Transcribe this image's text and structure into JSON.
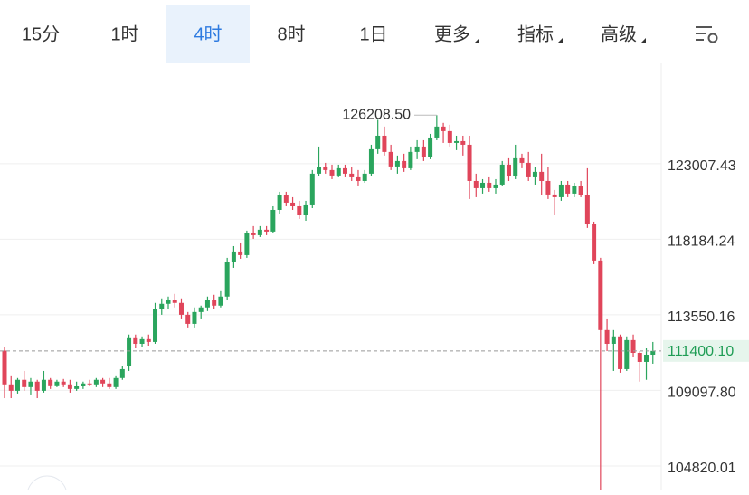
{
  "tabs": [
    "15分",
    "1时",
    "4时",
    "8时",
    "1日",
    "更多",
    "指标",
    "高级"
  ],
  "selected_tab": 2,
  "chart_data": {
    "type": "candlestick",
    "log_scale": true,
    "grid": true,
    "up_color": "#2aa55d",
    "down_color": "#e0455a",
    "ylim": [
      103470,
      129720
    ],
    "yticks": [
      123007.43,
      118184.24,
      113550.16,
      {
        "value": 109097.8,
        "label": "109097.80"
      },
      104820.01
    ],
    "high_label": {
      "value": 126208.5,
      "label": "126208.50"
    },
    "last_price": {
      "value": 111400.1,
      "label": "111400.10"
    },
    "ohlc": [
      [
        111420,
        111659,
        108650,
        109445
      ],
      [
        109445,
        109968,
        108650,
        109074
      ],
      [
        109074,
        109813,
        108915,
        109710
      ],
      [
        109710,
        110226,
        109074,
        109286
      ],
      [
        109286,
        109813,
        108862,
        109604
      ],
      [
        109604,
        109710,
        108650,
        109074
      ],
      [
        109074,
        110226,
        108968,
        109710
      ],
      [
        109710,
        109813,
        109180,
        109392
      ],
      [
        109392,
        109710,
        109286,
        109604
      ],
      [
        109604,
        109760,
        109286,
        109445
      ],
      [
        109445,
        109710,
        108968,
        109180
      ],
      [
        109180,
        109604,
        109074,
        109339
      ],
      [
        109339,
        109604,
        109180,
        109498
      ],
      [
        109498,
        109710,
        109339,
        109445
      ],
      [
        109445,
        109813,
        109286,
        109710
      ],
      [
        109710,
        109813,
        109286,
        109498
      ],
      [
        109498,
        109813,
        109180,
        109286
      ],
      [
        109286,
        109968,
        109180,
        109813
      ],
      [
        109813,
        110490,
        109710,
        110332
      ],
      [
        110490,
        112370,
        110226,
        112205
      ],
      [
        112205,
        112370,
        111552,
        111820
      ],
      [
        111820,
        112260,
        111606,
        112095
      ],
      [
        112095,
        112370,
        111713,
        111930
      ],
      [
        111930,
        114268,
        111820,
        113884
      ],
      [
        113884,
        114542,
        113551,
        114213
      ],
      [
        114213,
        114652,
        113884,
        114432
      ],
      [
        114432,
        114816,
        113995,
        114268
      ],
      [
        114268,
        114542,
        113332,
        113551
      ],
      [
        113551,
        113718,
        112794,
        113008
      ],
      [
        113008,
        113995,
        112794,
        113718
      ],
      [
        113718,
        114104,
        113332,
        113995
      ],
      [
        113995,
        114652,
        113773,
        114432
      ],
      [
        114432,
        114761,
        113884,
        114104
      ],
      [
        114104,
        114980,
        113995,
        114652
      ],
      [
        114652,
        117030,
        114432,
        116750
      ],
      [
        116750,
        117758,
        116414,
        117422
      ],
      [
        117422,
        117984,
        116974,
        117198
      ],
      [
        117198,
        118725,
        117030,
        118554
      ],
      [
        118554,
        119010,
        118212,
        118440
      ],
      [
        118440,
        119010,
        118326,
        118782
      ],
      [
        118782,
        119010,
        118440,
        118668
      ],
      [
        118668,
        120266,
        118554,
        120035
      ],
      [
        120035,
        121194,
        119805,
        120962
      ],
      [
        120962,
        121194,
        120266,
        120498
      ],
      [
        120498,
        120846,
        120035,
        120266
      ],
      [
        120266,
        120614,
        119462,
        119690
      ],
      [
        119690,
        120614,
        119348,
        120382
      ],
      [
        120382,
        122597,
        120150,
        122362
      ],
      [
        122362,
        124132,
        122185,
        122773
      ],
      [
        122773,
        123066,
        122362,
        122597
      ],
      [
        122597,
        122948,
        122008,
        122244
      ],
      [
        122244,
        122948,
        122126,
        122714
      ],
      [
        122714,
        122948,
        122126,
        122362
      ],
      [
        122362,
        122773,
        121890,
        122126
      ],
      [
        122126,
        122597,
        121600,
        121890
      ],
      [
        121890,
        122597,
        121774,
        122362
      ],
      [
        122362,
        124250,
        122185,
        123955
      ],
      [
        123955,
        125900,
        123660,
        124845
      ],
      [
        124845,
        125450,
        123541,
        123778
      ],
      [
        123778,
        124250,
        122597,
        122831
      ],
      [
        122831,
        123541,
        122362,
        123185
      ],
      [
        123185,
        123660,
        122480,
        122714
      ],
      [
        122714,
        124132,
        122597,
        123778
      ],
      [
        123778,
        124548,
        123304,
        124132
      ],
      [
        124132,
        124548,
        123185,
        123424
      ],
      [
        123424,
        124966,
        123304,
        124726
      ],
      [
        124726,
        126208.5,
        124548,
        125450
      ],
      [
        125450,
        125694,
        124369,
        125148
      ],
      [
        125148,
        125572,
        124132,
        124369
      ],
      [
        124369,
        124845,
        123896,
        124488
      ],
      [
        124488,
        124845,
        123541,
        124250
      ],
      [
        124250,
        124845,
        120730,
        121890
      ],
      [
        121890,
        122362,
        120846,
        121426
      ],
      [
        121426,
        122008,
        121078,
        121774
      ],
      [
        121774,
        122126,
        121194,
        121426
      ],
      [
        121426,
        122008,
        121078,
        121658
      ],
      [
        121658,
        123185,
        121542,
        122948
      ],
      [
        122948,
        123363,
        121890,
        122185
      ],
      [
        122185,
        124250,
        122008,
        123363
      ],
      [
        123363,
        123660,
        122714,
        123066
      ],
      [
        123066,
        123778,
        121890,
        122126
      ],
      [
        122126,
        122773,
        121658,
        122480
      ],
      [
        122480,
        123660,
        120962,
        121890
      ],
      [
        121890,
        122773,
        120730,
        121020
      ],
      [
        121020,
        121310,
        119690,
        120846
      ],
      [
        120846,
        121890,
        120614,
        121658
      ],
      [
        121658,
        121890,
        120846,
        121078
      ],
      [
        121078,
        121774,
        120846,
        121542
      ],
      [
        121542,
        121890,
        120846,
        120962
      ],
      [
        120962,
        122714,
        118896,
        119122
      ],
      [
        119122,
        119292,
        116638,
        116862
      ],
      [
        116862,
        117030,
        103500,
        112635
      ],
      [
        112635,
        113332,
        111391,
        111820
      ],
      [
        111820,
        112635,
        110226,
        112260
      ],
      [
        112260,
        112370,
        110123,
        110332
      ],
      [
        110332,
        112260,
        110226,
        112040
      ],
      [
        112040,
        112370,
        111020,
        111285
      ],
      [
        111285,
        111391,
        109604,
        110755
      ],
      [
        110755,
        111552,
        109710,
        111179
      ],
      [
        111179,
        111930,
        110649,
        111400.1
      ]
    ]
  }
}
